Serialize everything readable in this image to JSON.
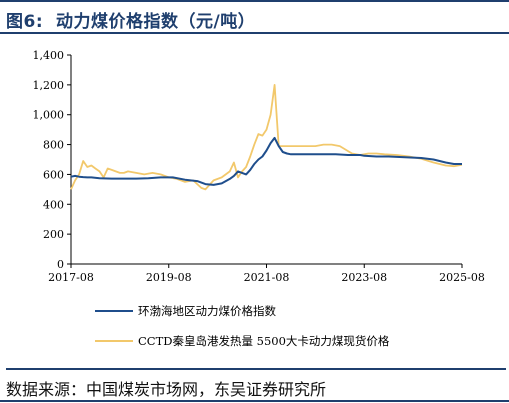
{
  "figure": {
    "label": "图6:",
    "title": "动力煤价格指数（元/吨）",
    "source": "数据来源：中国煤炭市场网，东吴证券研究所"
  },
  "colors": {
    "series1": "#1f4e8c",
    "series2": "#f2c86b",
    "axis": "#000000",
    "rule": "#1f3f6e"
  },
  "chart_data": {
    "type": "line",
    "title": "",
    "xlabel": "",
    "ylabel": "",
    "xlim": [
      "2017-08",
      "2025-08"
    ],
    "ylim": [
      0,
      1400
    ],
    "yticks": [
      0,
      200,
      400,
      600,
      800,
      1000,
      1200,
      1400
    ],
    "yticklabels": [
      "0",
      "200",
      "400",
      "600",
      "800",
      "1,000",
      "1,200",
      "1,400"
    ],
    "xticks": [
      "2017-08",
      "2019-08",
      "2021-08",
      "2023-08",
      "2025-08"
    ],
    "grid": false,
    "legend": "bottom",
    "series": [
      {
        "name": "环渤海地区动力煤价格指数",
        "color": "#1f4e8c",
        "points": [
          [
            "2017-08",
            585
          ],
          [
            "2017-09",
            590
          ],
          [
            "2017-10",
            585
          ],
          [
            "2017-11",
            582
          ],
          [
            "2017-12",
            580
          ],
          [
            "2018-01",
            580
          ],
          [
            "2018-03",
            575
          ],
          [
            "2018-06",
            572
          ],
          [
            "2018-09",
            572
          ],
          [
            "2018-12",
            572
          ],
          [
            "2019-03",
            575
          ],
          [
            "2019-06",
            580
          ],
          [
            "2019-09",
            580
          ],
          [
            "2019-12",
            565
          ],
          [
            "2020-03",
            555
          ],
          [
            "2020-05",
            535
          ],
          [
            "2020-07",
            530
          ],
          [
            "2020-09",
            540
          ],
          [
            "2020-11",
            570
          ],
          [
            "2020-12",
            590
          ],
          [
            "2021-01",
            620
          ],
          [
            "2021-02",
            610
          ],
          [
            "2021-03",
            600
          ],
          [
            "2021-04",
            630
          ],
          [
            "2021-05",
            670
          ],
          [
            "2021-06",
            700
          ],
          [
            "2021-07",
            720
          ],
          [
            "2021-08",
            760
          ],
          [
            "2021-09",
            810
          ],
          [
            "2021-10",
            845
          ],
          [
            "2021-11",
            790
          ],
          [
            "2021-12",
            750
          ],
          [
            "2022-01",
            740
          ],
          [
            "2022-02",
            735
          ],
          [
            "2022-04",
            735
          ],
          [
            "2022-07",
            735
          ],
          [
            "2022-10",
            735
          ],
          [
            "2023-01",
            735
          ],
          [
            "2023-04",
            730
          ],
          [
            "2023-07",
            730
          ],
          [
            "2023-08",
            725
          ],
          [
            "2023-11",
            720
          ],
          [
            "2024-02",
            720
          ],
          [
            "2024-06",
            715
          ],
          [
            "2024-10",
            710
          ],
          [
            "2025-01",
            700
          ],
          [
            "2025-04",
            680
          ],
          [
            "2025-06",
            670
          ],
          [
            "2025-08",
            670
          ]
        ]
      },
      {
        "name": "CCTD秦皇岛港发热量 5500大卡动力煤现货价格",
        "color": "#f2c86b",
        "points": [
          [
            "2017-08",
            500
          ],
          [
            "2017-09",
            560
          ],
          [
            "2017-10",
            600
          ],
          [
            "2017-11",
            690
          ],
          [
            "2017-12",
            650
          ],
          [
            "2018-01",
            660
          ],
          [
            "2018-02",
            640
          ],
          [
            "2018-03",
            620
          ],
          [
            "2018-04",
            580
          ],
          [
            "2018-05",
            640
          ],
          [
            "2018-06",
            630
          ],
          [
            "2018-07",
            620
          ],
          [
            "2018-08",
            610
          ],
          [
            "2018-09",
            610
          ],
          [
            "2018-10",
            620
          ],
          [
            "2018-12",
            610
          ],
          [
            "2019-02",
            600
          ],
          [
            "2019-04",
            610
          ],
          [
            "2019-06",
            600
          ],
          [
            "2019-08",
            580
          ],
          [
            "2019-10",
            570
          ],
          [
            "2019-12",
            550
          ],
          [
            "2020-02",
            560
          ],
          [
            "2020-04",
            510
          ],
          [
            "2020-05",
            500
          ],
          [
            "2020-07",
            560
          ],
          [
            "2020-09",
            580
          ],
          [
            "2020-11",
            620
          ],
          [
            "2020-12",
            680
          ],
          [
            "2021-01",
            580
          ],
          [
            "2021-02",
            620
          ],
          [
            "2021-03",
            650
          ],
          [
            "2021-04",
            720
          ],
          [
            "2021-05",
            800
          ],
          [
            "2021-06",
            870
          ],
          [
            "2021-07",
            860
          ],
          [
            "2021-08",
            900
          ],
          [
            "2021-09",
            1000
          ],
          [
            "2021-10",
            1200
          ],
          [
            "2021-11",
            790
          ],
          [
            "2021-12",
            790
          ],
          [
            "2022-02",
            790
          ],
          [
            "2022-05",
            790
          ],
          [
            "2022-08",
            790
          ],
          [
            "2022-10",
            800
          ],
          [
            "2022-12",
            800
          ],
          [
            "2023-02",
            790
          ],
          [
            "2023-05",
            740
          ],
          [
            "2023-07",
            730
          ],
          [
            "2023-09",
            740
          ],
          [
            "2023-11",
            740
          ],
          [
            "2024-01",
            735
          ],
          [
            "2024-04",
            730
          ],
          [
            "2024-07",
            720
          ],
          [
            "2024-10",
            705
          ],
          [
            "2025-01",
            680
          ],
          [
            "2025-04",
            660
          ],
          [
            "2025-06",
            655
          ],
          [
            "2025-08",
            665
          ]
        ]
      }
    ]
  }
}
